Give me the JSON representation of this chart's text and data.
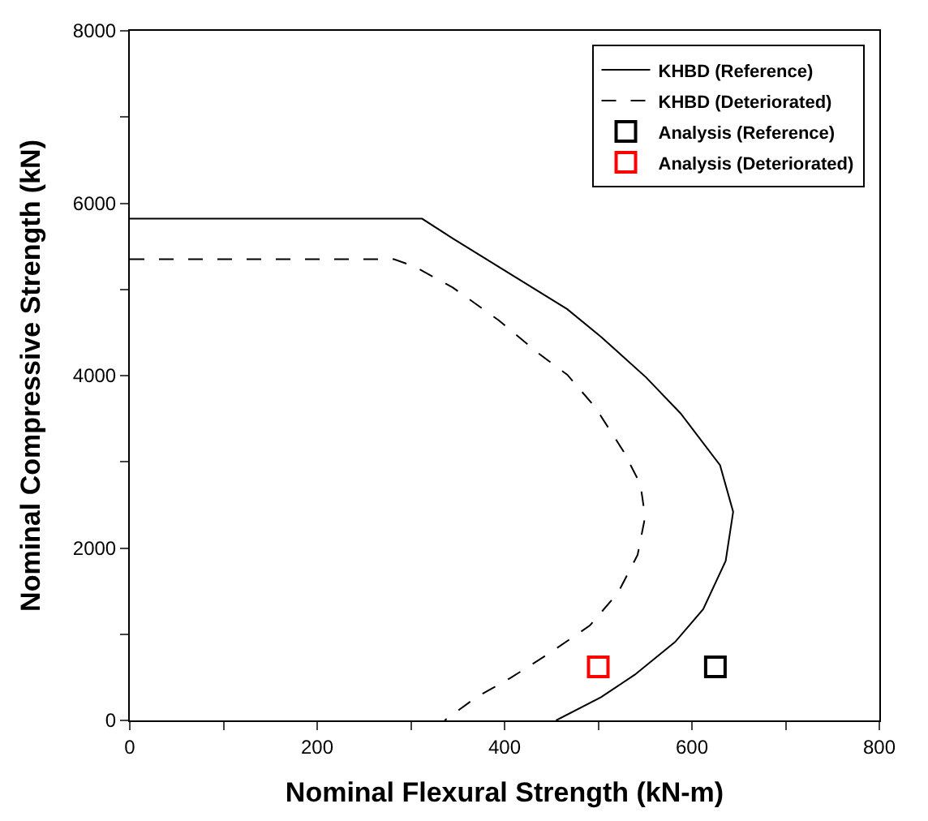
{
  "chart_data": {
    "type": "line",
    "xlabel": "Nominal Flexural Strength (kN-m)",
    "ylabel": "Nominal Compressive Strength (kN)",
    "xlim": [
      0,
      800
    ],
    "ylim": [
      0,
      8000
    ],
    "xticks": [
      0,
      {
        "value": 100,
        "label": null
      },
      200,
      {
        "value": 300,
        "label": null
      },
      400,
      {
        "value": 500,
        "label": null
      },
      600,
      {
        "value": 700,
        "label": null
      },
      800
    ],
    "yticks": [
      0,
      {
        "value": 1000,
        "label": null
      },
      2000,
      {
        "value": 3000,
        "label": null
      },
      4000,
      {
        "value": 5000,
        "label": null
      },
      6000,
      {
        "value": 7000,
        "label": null
      },
      8000
    ],
    "legend": "top right",
    "series": [
      {
        "name": "KHBD (Reference)",
        "line_style": "solid",
        "color": "#000000",
        "x": [
          0,
          312,
          345,
          406,
          467,
          503,
          551,
          588,
          630,
          644,
          636,
          612,
          582,
          539,
          503,
          455
        ],
        "values": [
          5820,
          5820,
          5590,
          5180,
          4770,
          4450,
          3980,
          3560,
          2960,
          2420,
          1850,
          1290,
          910,
          530,
          270,
          0
        ]
      },
      {
        "name": "KHBD (Deteriorated)",
        "line_style": "dashed",
        "color": "#000000",
        "x": [
          0,
          282,
          303,
          345,
          394,
          436,
          467,
          497,
          527,
          545,
          550,
          542,
          521,
          491,
          448,
          406,
          370,
          336
        ],
        "values": [
          5350,
          5350,
          5270,
          5020,
          4640,
          4260,
          4010,
          3630,
          3120,
          2740,
          2360,
          1920,
          1480,
          1100,
          780,
          490,
          270,
          0
        ]
      },
      {
        "name": "Analysis (Reference)",
        "type": "scatter",
        "marker": "square",
        "color": "#000000",
        "x": [
          625
        ],
        "values": [
          620
        ]
      },
      {
        "name": "Analysis (Deteriorated)",
        "type": "scatter",
        "marker": "square",
        "color": "#ff0000",
        "x": [
          500
        ],
        "values": [
          620
        ]
      }
    ]
  }
}
